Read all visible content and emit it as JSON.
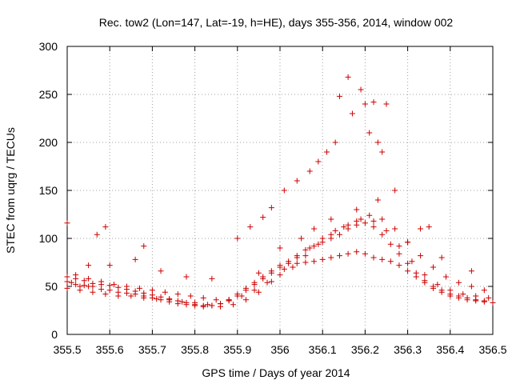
{
  "chart_data": {
    "type": "scatter",
    "title": "Rec. tow2 (Lon=147, Lat=-19, h=HE), days 355-356, 2014, window 002",
    "xlabel": "GPS time / Days of year 2014",
    "ylabel": "STEC from uqrg / TECUs",
    "xlim": [
      355.5,
      356.5
    ],
    "ylim": [
      0,
      300
    ],
    "xticks": [
      "355.5",
      "355.6",
      "355.7",
      "355.8",
      "355.9",
      "356",
      "356.1",
      "356.2",
      "356.3",
      "356.4",
      "356.5"
    ],
    "yticks": [
      "0",
      "50",
      "100",
      "150",
      "200",
      "250",
      "300"
    ],
    "grid": true,
    "marker": "+",
    "color": "#cc0000",
    "x": [
      355.5,
      355.51,
      355.52,
      355.53,
      355.54,
      355.55,
      355.56,
      355.58,
      355.6,
      355.62,
      355.64,
      355.66,
      355.68,
      355.7,
      355.72,
      355.74,
      355.76,
      355.78,
      355.8,
      355.82,
      355.84,
      355.86,
      355.88,
      355.9,
      355.92,
      355.94,
      355.96,
      355.98,
      356.0,
      356.02,
      356.04,
      356.06,
      356.08,
      356.1,
      356.12,
      356.14,
      356.16,
      356.18,
      356.2,
      356.22,
      356.24,
      356.26,
      356.28,
      356.3,
      356.32,
      356.34,
      356.36,
      356.38,
      356.4,
      356.42,
      356.44,
      356.46,
      356.48,
      356.5,
      355.5,
      355.52,
      355.54,
      355.56,
      355.58,
      355.6,
      355.62,
      355.64,
      355.66,
      355.68,
      355.7,
      355.72,
      355.74,
      355.76,
      355.78,
      355.8,
      355.82,
      355.84,
      355.86,
      355.88,
      355.9,
      355.92,
      355.94,
      355.96,
      355.98,
      356.0,
      356.02,
      356.04,
      356.06,
      356.08,
      356.1,
      356.12,
      356.14,
      356.16,
      356.18,
      356.2,
      356.22,
      356.24,
      356.26,
      356.28,
      356.3,
      356.32,
      356.34,
      356.36,
      356.38,
      356.4,
      356.42,
      356.44,
      356.46,
      356.48,
      355.5,
      355.53,
      355.56,
      355.59,
      355.62,
      355.65,
      355.68,
      355.71,
      355.74,
      355.77,
      355.8,
      355.83,
      355.86,
      355.89,
      355.92,
      355.95,
      355.98,
      356.01,
      356.04,
      356.07,
      356.1,
      356.13,
      356.16,
      356.19,
      356.22,
      356.25,
      356.28,
      356.31,
      356.34,
      356.37,
      356.4,
      356.43,
      356.46,
      356.49,
      355.52,
      355.55,
      355.58,
      355.61,
      355.64,
      355.67,
      355.7,
      355.73,
      355.76,
      355.79,
      355.82,
      355.85,
      355.88,
      355.91,
      355.94,
      355.97,
      356.0,
      356.03,
      356.06,
      356.09,
      356.12,
      356.15,
      356.18,
      356.21,
      356.24,
      356.27,
      356.3,
      356.33,
      356.36,
      356.39,
      356.42,
      356.45,
      356.48,
      355.5,
      355.57,
      355.59,
      355.68,
      355.9,
      355.93,
      355.96,
      355.98,
      356.01,
      356.04,
      356.07,
      356.09,
      356.11,
      356.13,
      356.14,
      356.16,
      356.17,
      356.19,
      356.2,
      356.21,
      356.22,
      356.23,
      356.24,
      356.25,
      356.27,
      356.33,
      356.35,
      355.55,
      355.6,
      355.66,
      355.72,
      355.78,
      355.84,
      355.95,
      356.0,
      356.05,
      356.08,
      356.12,
      356.18,
      356.23,
      356.3,
      356.38,
      356.45
    ],
    "y": [
      55,
      54,
      52,
      50,
      51,
      50,
      50,
      47,
      46,
      44,
      43,
      42,
      40,
      38,
      36,
      34,
      32,
      31,
      30,
      29,
      30,
      32,
      36,
      42,
      48,
      54,
      60,
      66,
      72,
      74,
      74,
      75,
      76,
      78,
      80,
      82,
      84,
      86,
      84,
      80,
      78,
      76,
      72,
      66,
      60,
      54,
      48,
      44,
      40,
      38,
      36,
      35,
      34,
      33,
      60,
      58,
      56,
      53,
      52,
      51,
      49,
      47,
      45,
      43,
      41,
      39,
      37,
      35,
      33,
      31,
      30,
      30,
      32,
      35,
      40,
      46,
      52,
      58,
      64,
      70,
      76,
      82,
      88,
      92,
      96,
      100,
      104,
      110,
      114,
      116,
      112,
      104,
      94,
      84,
      74,
      64,
      56,
      50,
      46,
      42,
      40,
      38,
      36,
      35,
      48,
      46,
      44,
      42,
      40,
      40,
      38,
      37,
      36,
      34,
      33,
      31,
      29,
      31,
      36,
      44,
      55,
      68,
      80,
      90,
      100,
      108,
      114,
      120,
      118,
      108,
      92,
      76,
      62,
      52,
      46,
      42,
      40,
      38,
      62,
      58,
      55,
      52,
      50,
      48,
      46,
      44,
      42,
      40,
      38,
      36,
      36,
      40,
      46,
      54,
      62,
      70,
      82,
      94,
      104,
      112,
      118,
      124,
      120,
      110,
      96,
      82,
      70,
      60,
      54,
      50,
      46,
      116,
      104,
      112,
      92,
      100,
      112,
      122,
      132,
      150,
      160,
      170,
      180,
      190,
      200,
      248,
      268,
      230,
      255,
      240,
      210,
      242,
      200,
      190,
      240,
      150,
      110,
      112,
      72,
      72,
      78,
      66,
      60,
      58,
      64,
      90,
      100,
      110,
      120,
      130,
      140,
      96,
      80,
      66
    ]
  }
}
